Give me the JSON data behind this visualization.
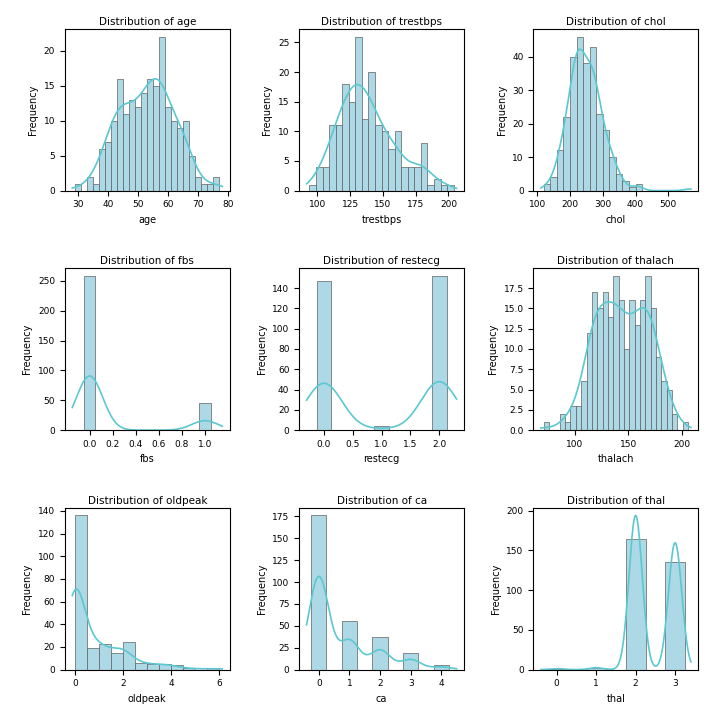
{
  "subplot_titles": [
    "Distribution of age",
    "Distribution of trestbps",
    "Distribution of chol",
    "Distribution of fbs",
    "Distribution of restecg",
    "Distribution of thalach",
    "Distribution of oldpeak",
    "Distribution of ca",
    "Distribution of thal"
  ],
  "bar_color": "#add8e6",
  "bar_edgecolor": "#606060",
  "kde_color": "#5bc8d0",
  "kde_linewidth": 1.2,
  "figsize": [
    7.2,
    7.2
  ],
  "dpi": 100,
  "fbs_0": 258,
  "fbs_1": 45,
  "restecg_0": 147,
  "restecg_1": 4,
  "restecg_2": 152,
  "age": [
    29,
    34,
    34,
    35,
    37,
    37,
    37,
    38,
    38,
    38,
    39,
    39,
    40,
    40,
    40,
    40,
    40,
    41,
    41,
    41,
    41,
    41,
    41,
    42,
    42,
    42,
    42,
    43,
    43,
    43,
    43,
    43,
    43,
    43,
    44,
    44,
    44,
    44,
    44,
    44,
    44,
    44,
    44,
    45,
    45,
    45,
    45,
    45,
    45,
    46,
    46,
    46,
    46,
    46,
    47,
    47,
    47,
    47,
    47,
    47,
    47,
    48,
    48,
    48,
    48,
    48,
    48,
    49,
    49,
    49,
    49,
    49,
    50,
    50,
    50,
    50,
    50,
    50,
    50,
    51,
    51,
    51,
    51,
    51,
    52,
    52,
    52,
    52,
    52,
    52,
    52,
    52,
    52,
    53,
    53,
    53,
    53,
    53,
    53,
    53,
    54,
    54,
    54,
    54,
    54,
    54,
    54,
    54,
    54,
    55,
    55,
    55,
    55,
    55,
    55,
    55,
    55,
    56,
    56,
    56,
    56,
    56,
    56,
    56,
    57,
    57,
    57,
    57,
    57,
    57,
    57,
    57,
    57,
    57,
    57,
    57,
    58,
    58,
    58,
    58,
    58,
    58,
    58,
    58,
    58,
    58,
    59,
    59,
    59,
    59,
    59,
    59,
    60,
    60,
    60,
    60,
    60,
    60,
    61,
    61,
    61,
    61,
    61,
    62,
    62,
    62,
    62,
    62,
    63,
    63,
    63,
    63,
    64,
    64,
    64,
    64,
    64,
    65,
    65,
    65,
    65,
    65,
    65,
    65,
    65,
    66,
    66,
    67,
    67,
    67,
    67,
    68,
    69,
    70,
    71,
    74,
    76,
    77
  ],
  "trestbps": [
    94,
    100,
    100,
    100,
    102,
    104,
    105,
    108,
    108,
    110,
    110,
    110,
    110,
    110,
    110,
    110,
    110,
    112,
    112,
    112,
    114,
    115,
    115,
    115,
    117,
    118,
    118,
    118,
    118,
    118,
    118,
    120,
    120,
    120,
    120,
    120,
    120,
    120,
    120,
    120,
    120,
    120,
    120,
    120,
    120,
    120,
    120,
    122,
    122,
    124,
    124,
    124,
    125,
    125,
    125,
    126,
    128,
    128,
    128,
    128,
    128,
    128,
    128,
    128,
    130,
    130,
    130,
    130,
    130,
    130,
    130,
    130,
    130,
    130,
    130,
    130,
    130,
    130,
    130,
    130,
    130,
    130,
    130,
    130,
    130,
    132,
    132,
    132,
    132,
    132,
    134,
    134,
    134,
    134,
    136,
    136,
    136,
    138,
    138,
    138,
    138,
    138,
    140,
    140,
    140,
    140,
    140,
    140,
    140,
    140,
    140,
    140,
    140,
    140,
    140,
    140,
    140,
    140,
    140,
    142,
    142,
    142,
    144,
    144,
    145,
    145,
    145,
    145,
    145,
    146,
    148,
    148,
    148,
    150,
    150,
    150,
    150,
    150,
    150,
    150,
    150,
    152,
    152,
    154,
    154,
    154,
    155,
    156,
    156,
    158,
    160,
    160,
    160,
    160,
    160,
    160,
    160,
    160,
    160,
    162,
    164,
    164,
    164,
    165,
    170,
    170,
    172,
    172,
    174,
    176,
    178,
    178,
    180,
    180,
    180,
    180,
    180,
    180,
    180,
    182,
    188,
    192,
    192,
    194,
    200
  ],
  "chol": [
    126,
    131,
    141,
    149,
    157,
    157,
    160,
    160,
    164,
    164,
    167,
    169,
    172,
    174,
    174,
    175,
    177,
    177,
    180,
    180,
    182,
    183,
    183,
    184,
    185,
    185,
    185,
    187,
    188,
    188,
    188,
    192,
    193,
    193,
    193,
    197,
    197,
    197,
    197,
    198,
    200,
    200,
    200,
    200,
    201,
    203,
    203,
    204,
    205,
    206,
    206,
    207,
    207,
    207,
    208,
    209,
    209,
    209,
    209,
    210,
    211,
    211,
    212,
    212,
    212,
    213,
    214,
    214,
    214,
    215,
    215,
    215,
    216,
    216,
    216,
    216,
    217,
    217,
    218,
    219,
    220,
    220,
    220,
    221,
    221,
    222,
    223,
    223,
    223,
    223,
    224,
    224,
    225,
    225,
    225,
    226,
    226,
    226,
    227,
    227,
    228,
    229,
    229,
    229,
    230,
    230,
    230,
    231,
    231,
    231,
    232,
    232,
    233,
    233,
    233,
    234,
    234,
    234,
    234,
    234,
    235,
    237,
    237,
    237,
    239,
    239,
    240,
    240,
    241,
    241,
    241,
    241,
    241,
    243,
    243,
    244,
    245,
    245,
    245,
    246,
    246,
    247,
    247,
    248,
    248,
    249,
    249,
    250,
    250,
    250,
    252,
    252,
    253,
    254,
    254,
    254,
    255,
    255,
    256,
    256,
    256,
    257,
    258,
    259,
    260,
    261,
    262,
    262,
    262,
    262,
    263,
    263,
    264,
    265,
    265,
    266,
    266,
    267,
    267,
    267,
    268,
    268,
    269,
    270,
    270,
    270,
    270,
    271,
    271,
    272,
    273,
    273,
    273,
    274,
    274,
    274,
    274,
    274,
    275,
    276,
    276,
    276,
    277,
    277,
    277,
    277,
    278,
    280,
    281,
    281,
    282,
    283,
    284,
    284,
    285,
    286,
    286,
    286,
    288,
    289,
    290,
    290,
    293,
    294,
    294,
    295,
    295,
    295,
    298,
    299,
    300,
    300,
    302,
    302,
    303,
    303,
    304,
    304,
    305,
    306,
    307,
    308,
    309,
    311,
    315,
    318,
    318,
    319,
    321,
    322,
    325,
    326,
    326,
    327,
    330,
    330,
    330,
    333,
    340,
    341,
    341,
    342,
    353,
    360,
    360,
    360,
    394,
    407,
    409,
    564
  ],
  "thalach": [
    71,
    88,
    90,
    95,
    96,
    99,
    100,
    103,
    103,
    105,
    106,
    108,
    108,
    108,
    109,
    110,
    111,
    111,
    112,
    113,
    113,
    113,
    114,
    114,
    114,
    114,
    115,
    115,
    116,
    116,
    117,
    117,
    117,
    117,
    117,
    118,
    118,
    118,
    118,
    119,
    119,
    120,
    120,
    120,
    120,
    121,
    121,
    121,
    121,
    122,
    122,
    122,
    123,
    123,
    123,
    124,
    124,
    125,
    125,
    125,
    126,
    126,
    126,
    126,
    127,
    127,
    128,
    128,
    128,
    128,
    129,
    129,
    130,
    130,
    130,
    130,
    130,
    131,
    131,
    132,
    132,
    132,
    132,
    132,
    132,
    133,
    133,
    134,
    134,
    134,
    135,
    136,
    136,
    136,
    136,
    136,
    137,
    137,
    138,
    138,
    138,
    138,
    139,
    139,
    139,
    140,
    140,
    140,
    140,
    140,
    141,
    141,
    142,
    142,
    143,
    143,
    143,
    143,
    143,
    144,
    144,
    144,
    144,
    145,
    145,
    145,
    146,
    146,
    147,
    147,
    148,
    148,
    148,
    149,
    150,
    150,
    151,
    151,
    151,
    152,
    152,
    152,
    153,
    153,
    153,
    154,
    154,
    154,
    154,
    155,
    155,
    155,
    156,
    156,
    157,
    157,
    157,
    157,
    158,
    159,
    159,
    159,
    160,
    160,
    160,
    161,
    161,
    162,
    162,
    162,
    163,
    163,
    163,
    163,
    163,
    163,
    164,
    164,
    165,
    165,
    165,
    166,
    166,
    166,
    167,
    167,
    167,
    168,
    168,
    168,
    168,
    168,
    169,
    169,
    169,
    169,
    170,
    170,
    170,
    170,
    171,
    171,
    172,
    172,
    172,
    172,
    173,
    173,
    174,
    174,
    174,
    175,
    175,
    175,
    175,
    177,
    177,
    177,
    178,
    178,
    178,
    179,
    179,
    180,
    182,
    182,
    182,
    182,
    184,
    185,
    186,
    187,
    187,
    188,
    190,
    192,
    195,
    202
  ],
  "oldpeak": [
    0,
    0,
    0,
    0,
    0,
    0,
    0,
    0,
    0,
    0,
    0,
    0,
    0,
    0,
    0,
    0,
    0,
    0,
    0,
    0,
    0,
    0,
    0,
    0,
    0,
    0,
    0,
    0,
    0,
    0,
    0,
    0,
    0,
    0,
    0,
    0,
    0,
    0,
    0,
    0,
    0,
    0,
    0,
    0,
    0,
    0,
    0,
    0,
    0,
    0,
    0,
    0,
    0,
    0,
    0,
    0,
    0,
    0,
    0,
    0,
    0,
    0,
    0,
    0,
    0,
    0,
    0,
    0,
    0,
    0,
    0,
    0,
    0,
    0,
    0,
    0,
    0,
    0,
    0,
    0,
    0,
    0,
    0,
    0,
    0,
    0,
    0,
    0,
    0,
    0,
    0,
    0,
    0,
    0,
    0,
    0,
    0,
    0,
    0,
    0,
    0,
    0,
    0,
    0,
    0,
    0,
    0,
    0,
    0,
    0,
    0,
    0,
    0,
    0,
    0,
    0,
    0,
    0,
    0,
    0,
    0,
    0,
    0.1,
    0.1,
    0.1,
    0.1,
    0.2,
    0.2,
    0.2,
    0.2,
    0.2,
    0.2,
    0.3,
    0.4,
    0.4,
    0.4,
    0.5,
    0.5,
    0.5,
    0.5,
    0.5,
    0.6,
    0.6,
    0.6,
    0.6,
    0.6,
    0.6,
    0.7,
    0.8,
    0.8,
    0.8,
    0.8,
    0.8,
    0.9,
    0.9,
    1.0,
    1.0,
    1.0,
    1.0,
    1.0,
    1.0,
    1.0,
    1.0,
    1.0,
    1.0,
    1.0,
    1.0,
    1.0,
    1.0,
    1.0,
    1.0,
    1.0,
    1.0,
    1.2,
    1.2,
    1.2,
    1.2,
    1.4,
    1.5,
    1.5,
    1.5,
    1.5,
    1.5,
    1.5,
    1.5,
    1.5,
    1.5,
    1.5,
    1.5,
    1.6,
    1.8,
    1.8,
    1.9,
    2.0,
    2.0,
    2.0,
    2.0,
    2.0,
    2.0,
    2.0,
    2.0,
    2.0,
    2.0,
    2.0,
    2.0,
    2.0,
    2.0,
    2.0,
    2.0,
    2.0,
    2.0,
    2.0,
    2.0,
    2.1,
    2.2,
    2.3,
    2.3,
    2.5,
    2.6,
    2.6,
    2.6,
    2.8,
    2.8,
    3.0,
    3.0,
    3.1,
    3.2,
    3.4,
    3.5,
    3.5,
    3.6,
    3.8,
    3.8,
    4.0,
    4.0,
    4.2,
    4.4,
    4.9,
    5.6,
    6.2
  ],
  "ca_values": [
    0,
    0,
    0,
    0,
    0,
    0,
    0,
    0,
    0,
    0,
    0,
    0,
    0,
    0,
    0,
    0,
    0,
    0,
    0,
    0,
    0,
    0,
    0,
    0,
    0,
    0,
    0,
    0,
    0,
    0,
    0,
    0,
    0,
    0,
    0,
    0,
    0,
    0,
    0,
    0,
    0,
    0,
    0,
    0,
    0,
    0,
    0,
    0,
    0,
    0,
    0,
    0,
    0,
    0,
    0,
    0,
    0,
    0,
    0,
    0,
    0,
    0,
    0,
    0,
    0,
    0,
    0,
    0,
    0,
    0,
    0,
    0,
    0,
    0,
    0,
    0,
    0,
    0,
    0,
    0,
    0,
    0,
    0,
    0,
    0,
    0,
    0,
    0,
    0,
    0,
    0,
    0,
    0,
    0,
    0,
    0,
    0,
    0,
    0,
    0,
    0,
    0,
    0,
    0,
    0,
    0,
    0,
    0,
    0,
    0,
    0,
    0,
    0,
    0,
    0,
    0,
    0,
    0,
    0,
    0,
    0,
    0,
    0,
    0,
    0,
    0,
    0,
    0,
    0,
    0,
    0,
    0,
    0,
    0,
    0,
    0,
    0,
    0,
    0,
    0,
    0,
    0,
    0,
    0,
    0,
    0,
    0,
    0,
    0,
    0,
    0,
    0,
    0,
    0,
    0,
    0,
    0,
    0,
    0,
    0,
    0,
    0,
    0,
    0,
    0,
    0,
    0,
    0,
    0,
    0,
    0,
    0,
    0,
    0,
    0,
    0,
    1,
    1,
    1,
    1,
    1,
    1,
    1,
    1,
    1,
    1,
    1,
    1,
    1,
    1,
    1,
    1,
    1,
    1,
    1,
    1,
    1,
    1,
    1,
    1,
    1,
    1,
    1,
    1,
    1,
    1,
    1,
    1,
    1,
    1,
    1,
    1,
    1,
    1,
    1,
    1,
    1,
    1,
    1,
    1,
    1,
    1,
    1,
    1,
    1,
    1,
    1,
    1,
    1,
    1,
    1,
    2,
    2,
    2,
    2,
    2,
    2,
    2,
    2,
    2,
    2,
    2,
    2,
    2,
    2,
    2,
    2,
    2,
    2,
    2,
    2,
    2,
    2,
    2,
    2,
    2,
    2,
    2,
    2,
    2,
    2,
    2,
    2,
    2,
    2,
    2,
    2,
    2,
    3,
    3,
    3,
    3,
    3,
    3,
    3,
    3,
    3,
    3,
    3,
    3,
    3,
    3,
    3,
    3,
    3,
    3,
    3,
    4,
    4,
    4,
    4,
    4
  ],
  "thal_values": [
    0,
    1,
    1,
    2,
    2,
    2,
    2,
    2,
    2,
    2,
    2,
    2,
    2,
    2,
    2,
    2,
    2,
    2,
    2,
    2,
    2,
    2,
    2,
    2,
    2,
    2,
    2,
    2,
    2,
    2,
    2,
    2,
    2,
    2,
    2,
    2,
    2,
    2,
    2,
    2,
    2,
    2,
    2,
    2,
    2,
    2,
    2,
    2,
    2,
    2,
    2,
    2,
    2,
    2,
    2,
    2,
    2,
    2,
    2,
    2,
    2,
    2,
    2,
    2,
    2,
    2,
    2,
    2,
    2,
    2,
    2,
    2,
    2,
    2,
    2,
    2,
    2,
    2,
    2,
    2,
    2,
    2,
    2,
    2,
    2,
    2,
    2,
    2,
    2,
    2,
    2,
    2,
    2,
    2,
    2,
    2,
    2,
    2,
    2,
    2,
    2,
    2,
    2,
    2,
    2,
    2,
    2,
    2,
    2,
    2,
    2,
    2,
    2,
    2,
    2,
    2,
    2,
    2,
    2,
    2,
    2,
    2,
    2,
    2,
    2,
    2,
    2,
    2,
    2,
    2,
    2,
    2,
    2,
    2,
    2,
    2,
    2,
    2,
    2,
    2,
    2,
    2,
    2,
    2,
    2,
    2,
    2,
    2,
    2,
    2,
    2,
    2,
    2,
    2,
    2,
    2,
    2,
    2,
    2,
    2,
    2,
    2,
    2,
    2,
    2,
    2,
    2,
    3,
    3,
    3,
    3,
    3,
    3,
    3,
    3,
    3,
    3,
    3,
    3,
    3,
    3,
    3,
    3,
    3,
    3,
    3,
    3,
    3,
    3,
    3,
    3,
    3,
    3,
    3,
    3,
    3,
    3,
    3,
    3,
    3,
    3,
    3,
    3,
    3,
    3,
    3,
    3,
    3,
    3,
    3,
    3,
    3,
    3,
    3,
    3,
    3,
    3,
    3,
    3,
    3,
    3,
    3,
    3,
    3,
    3,
    3,
    3,
    3,
    3,
    3,
    3,
    3,
    3,
    3,
    3,
    3,
    3,
    3,
    3,
    3,
    3,
    3,
    3,
    3,
    3,
    3,
    3,
    3,
    3,
    3,
    3,
    3,
    3,
    3,
    3,
    3,
    3,
    3,
    3,
    3,
    3,
    3,
    3,
    3,
    3,
    3,
    3,
    3,
    3,
    3,
    3,
    3,
    3,
    3,
    3,
    3,
    3,
    3,
    3,
    3,
    3,
    3,
    3,
    3,
    3,
    3,
    3,
    3,
    3,
    3,
    3,
    3,
    3,
    3,
    3,
    3,
    3,
    3,
    3,
    3,
    3,
    3
  ]
}
